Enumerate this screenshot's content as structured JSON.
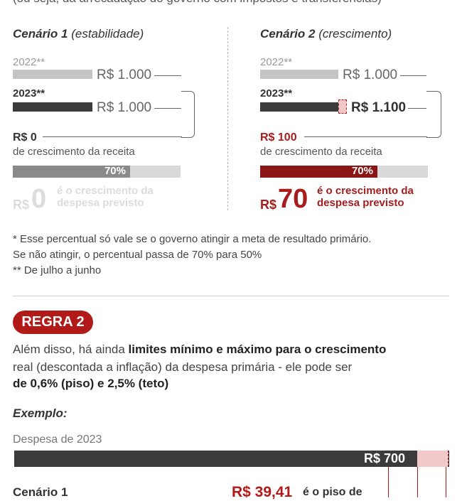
{
  "intro": "(ou seja, da arrecadação do governo com impostos e transferências)",
  "scenario1": {
    "title": "Cenário 1",
    "desc": "(estabilidade)",
    "year_a": "2022**",
    "year_b": "2023**",
    "amount_a": "R$ 1.000",
    "amount_b": "R$ 1.000",
    "growth_value": "R$ 0",
    "growth_text": "de crescimento da receita",
    "pct_label": "70%",
    "pct_value": 0.7,
    "result_prefix": "R$",
    "result_value": "0",
    "result_text": "é o crescimento da despesa previsto",
    "fill_color": "#8a8a8a",
    "result_color": "#dcdcdc"
  },
  "scenario2": {
    "title": "Cenário 2",
    "desc": "(crescimento)",
    "year_a": "2022**",
    "year_b": "2023**",
    "amount_a": "R$ 1.000",
    "amount_b": "R$ 1.100",
    "growth_value": "R$ 100",
    "growth_text": "de crescimento da receita",
    "pct_label": "70%",
    "pct_value": 0.7,
    "result_prefix": "R$",
    "result_value": "70",
    "result_text": "é o crescimento da despesa previsto",
    "fill_color": "#8b1414",
    "result_color": "#a51d1d"
  },
  "notes": {
    "line1": "* Esse percentual só vale se o governo atingir a meta de resultado primário.",
    "line2": "Se não atingir, o percentual passa de 70% para 50%",
    "line3": "** De julho a junho"
  },
  "regra2": {
    "badge": "REGRA 2",
    "p1_a": "Além disso, há ainda ",
    "p1_b": "limites mínimo e máximo para o crescimento",
    "p2": "real (descontada a inflação) da despesa primária - ele pode ser",
    "p3": "de 0,6% (piso) e 2,5% (teto)"
  },
  "exemplo": {
    "label": "Exemplo:",
    "despesa_label": "Despesa de 2023",
    "despesa_value": "R$ 700",
    "cenario_label": "Cenário 1",
    "piso_value": "R$ 39,41",
    "piso_text": "é o piso de"
  },
  "colors": {
    "accent": "#b21a1a",
    "light_gray": "#c4c4c4",
    "dark_gray": "#3b3b3b",
    "pink": "#f2c9c9"
  }
}
